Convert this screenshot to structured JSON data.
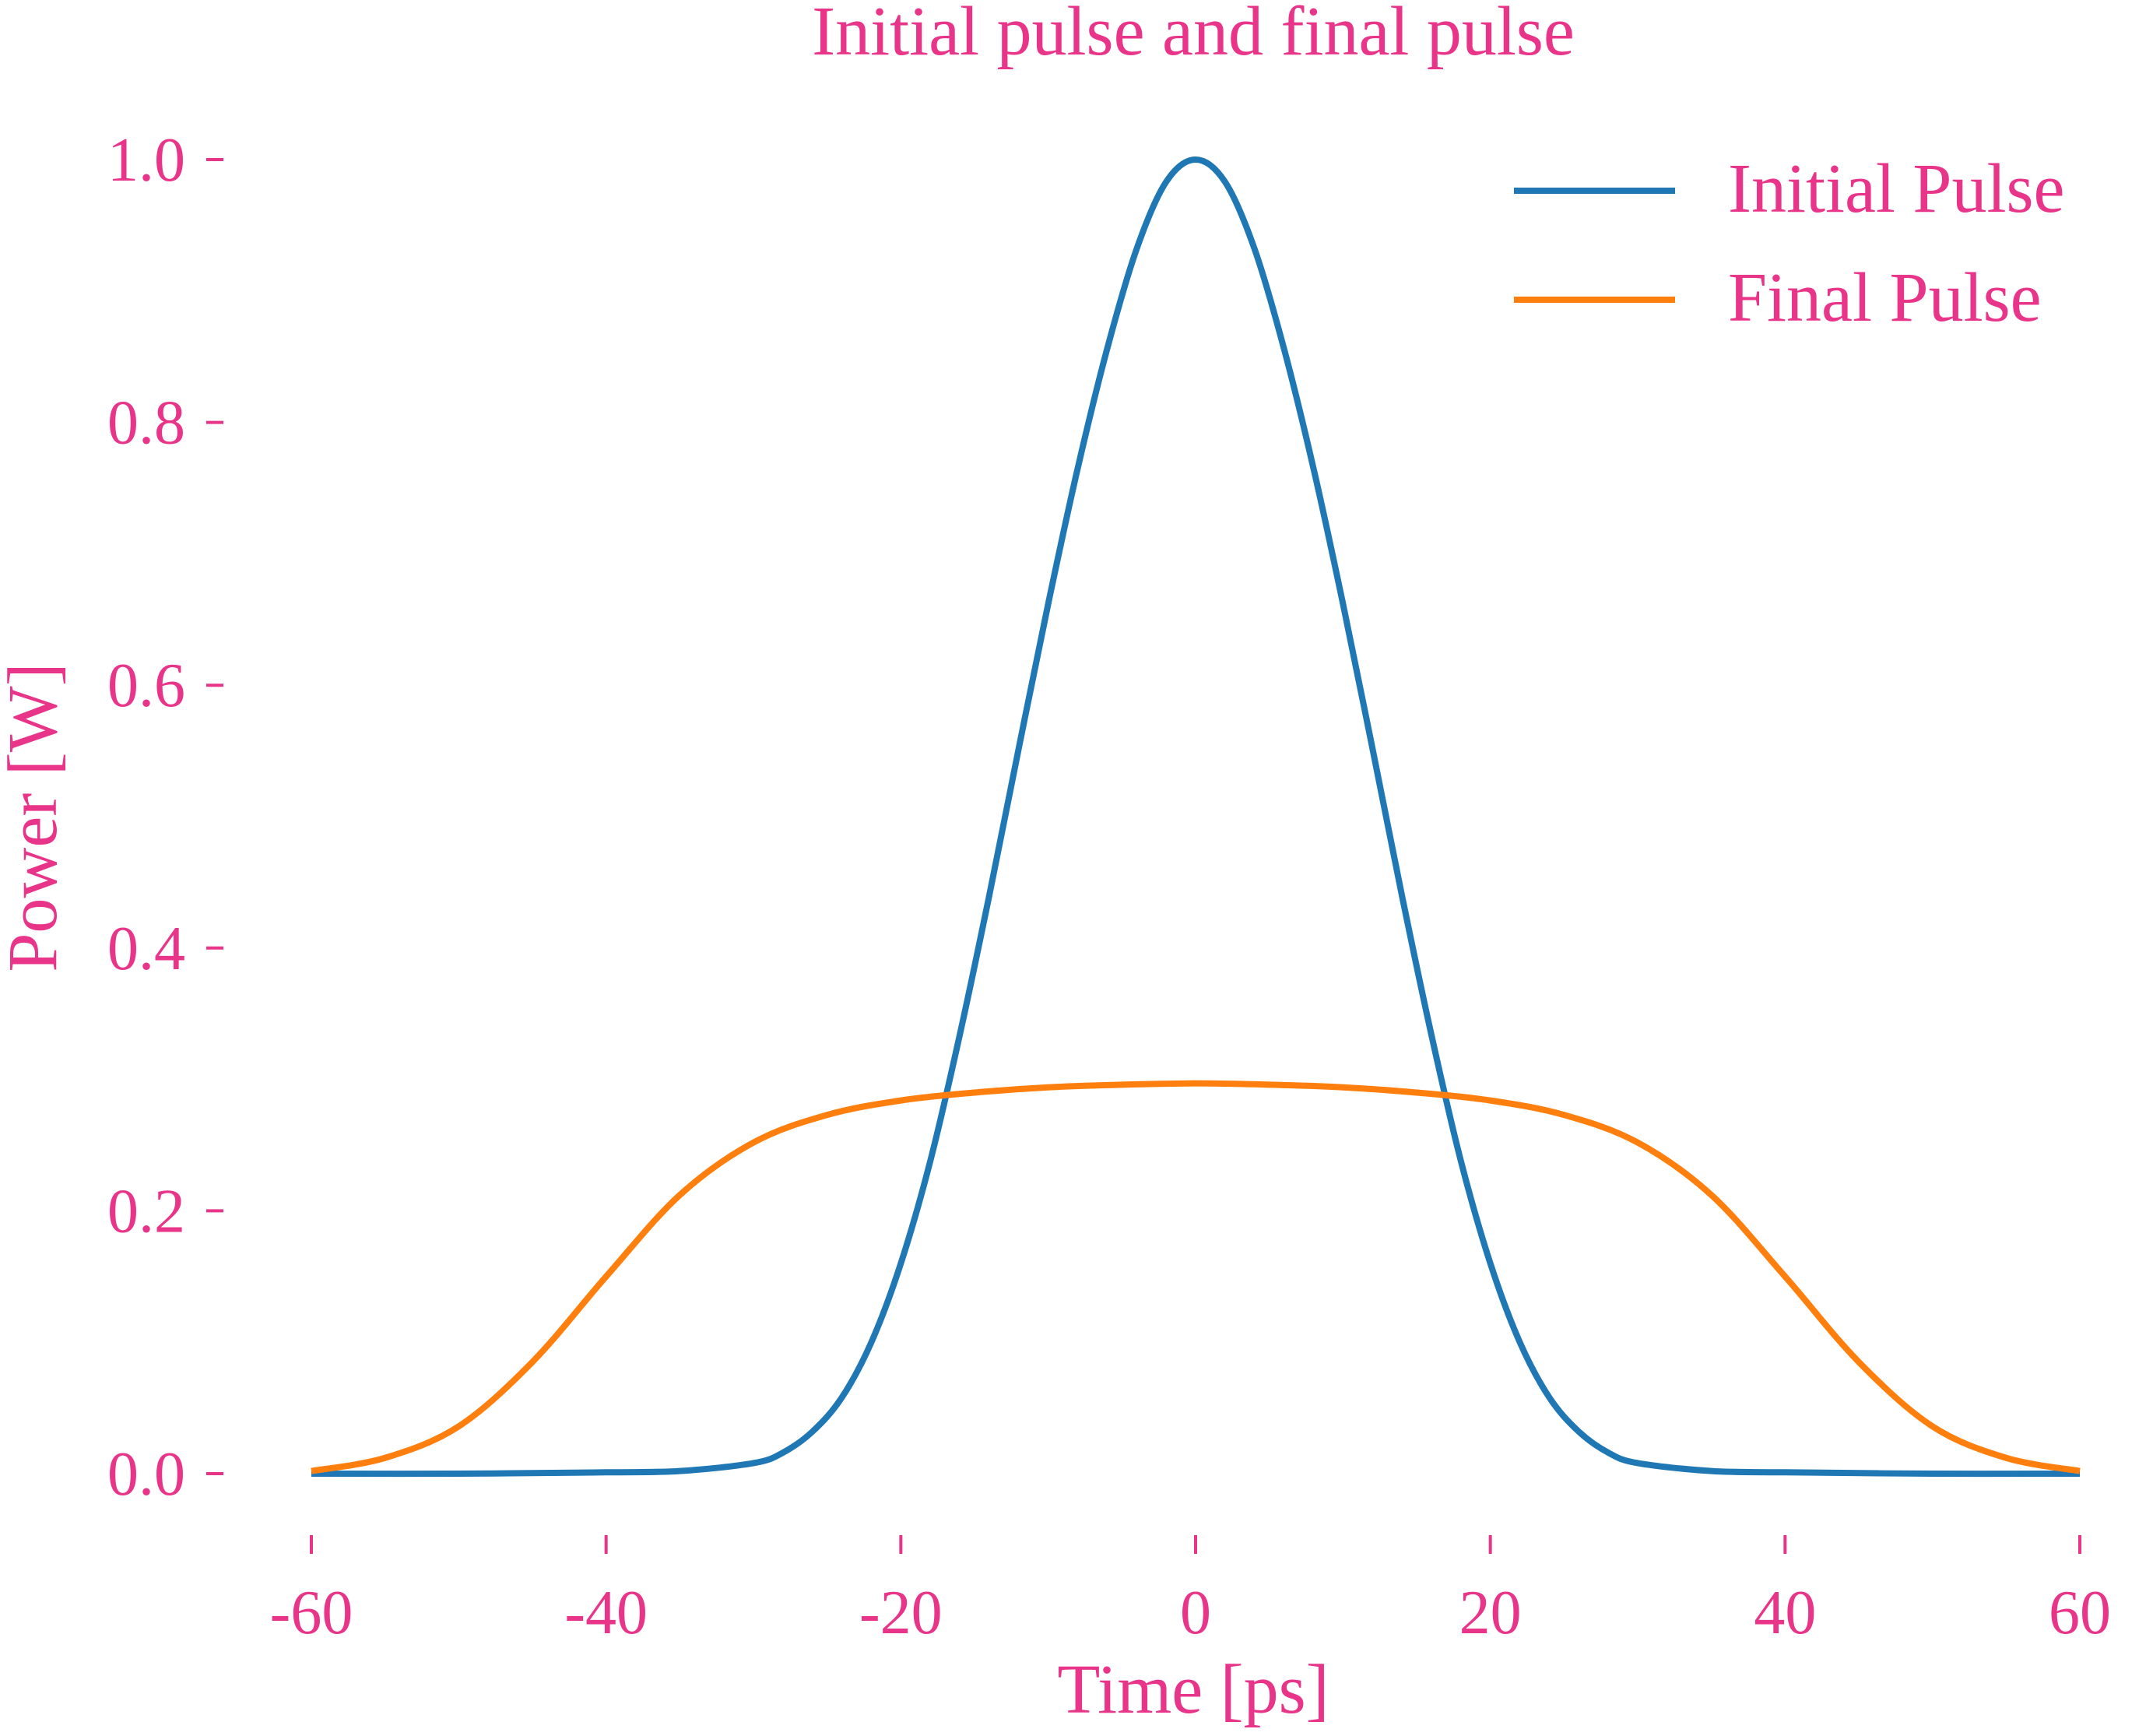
{
  "chart_data": {
    "type": "line",
    "title": "Initial pulse and final pulse",
    "xlabel": "Time [ps]",
    "ylabel": "Power [W]",
    "xlim": [
      -60,
      60
    ],
    "ylim": [
      0,
      1
    ],
    "xticks": [
      -60,
      -40,
      -20,
      0,
      20,
      40,
      60
    ],
    "xtick_labels": [
      "-60",
      "-40",
      "-20",
      "0",
      "20",
      "40",
      "60"
    ],
    "yticks": [
      0,
      0.2,
      0.4,
      0.6,
      0.8,
      1.0
    ],
    "ytick_labels": [
      "0.0",
      "0.2",
      "0.4",
      "0.6",
      "0.8",
      "1.0"
    ],
    "grid": false,
    "legend_position": "top-right",
    "text_color": "#e8358a",
    "series": [
      {
        "name": "Initial Pulse",
        "color": "#1f77b4",
        "x": [
          -60,
          -50,
          -40,
          -35,
          -30,
          -28,
          -26,
          -24,
          -22,
          -20,
          -18,
          -16,
          -14,
          -12,
          -10,
          -8,
          -6,
          -4,
          -2,
          0,
          2,
          4,
          6,
          8,
          10,
          12,
          14,
          16,
          18,
          20,
          22,
          24,
          26,
          28,
          30,
          35,
          40,
          50,
          60
        ],
        "y": [
          0.0,
          0.0,
          0.001,
          0.002,
          0.008,
          0.016,
          0.032,
          0.058,
          0.1,
          0.16,
          0.238,
          0.334,
          0.44,
          0.552,
          0.662,
          0.765,
          0.856,
          0.932,
          0.983,
          1.0,
          0.983,
          0.932,
          0.856,
          0.765,
          0.662,
          0.552,
          0.44,
          0.334,
          0.238,
          0.16,
          0.1,
          0.058,
          0.032,
          0.016,
          0.008,
          0.002,
          0.001,
          0.0,
          0.0
        ]
      },
      {
        "name": "Final Pulse",
        "color": "#ff7f0e",
        "x": [
          -60,
          -55,
          -50,
          -45,
          -40,
          -35,
          -30,
          -25,
          -20,
          -15,
          -10,
          -5,
          0,
          5,
          10,
          15,
          20,
          25,
          30,
          35,
          40,
          45,
          50,
          55,
          60
        ],
        "y": [
          0.002,
          0.012,
          0.036,
          0.085,
          0.15,
          0.212,
          0.252,
          0.273,
          0.284,
          0.29,
          0.294,
          0.296,
          0.297,
          0.296,
          0.294,
          0.29,
          0.284,
          0.273,
          0.252,
          0.212,
          0.15,
          0.085,
          0.036,
          0.012,
          0.002
        ]
      }
    ]
  }
}
